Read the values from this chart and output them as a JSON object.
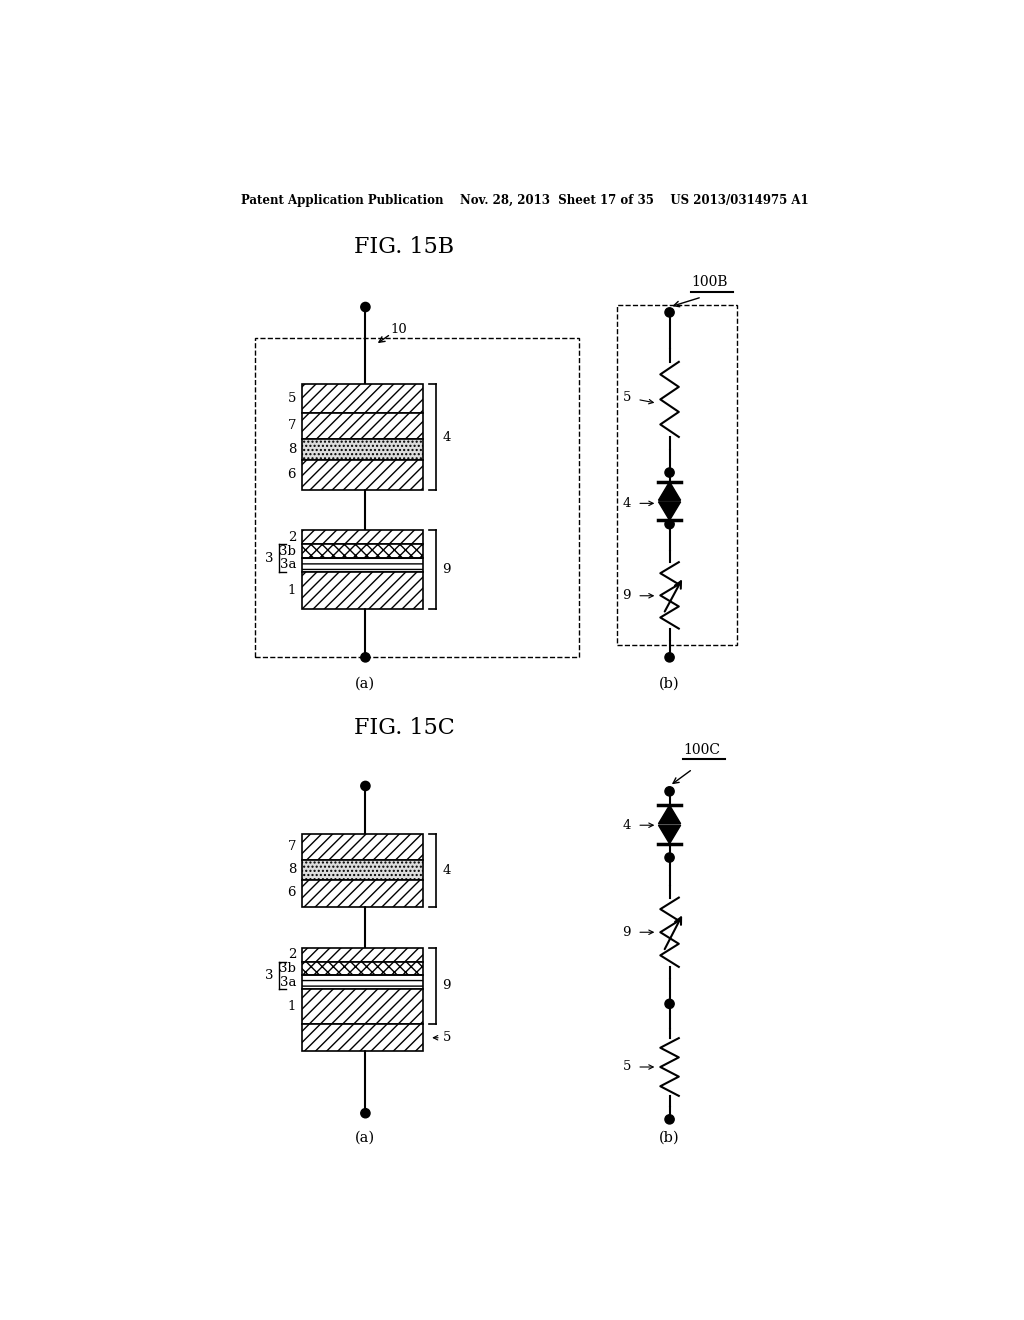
{
  "title_15b": "FIG. 15B",
  "title_15c": "FIG. 15C",
  "header_text": "Patent Application Publication    Nov. 28, 2013  Sheet 17 of 35    US 2013/0314975 A1",
  "label_100B": "100B",
  "label_100C": "100C",
  "bg_color": "#ffffff",
  "line_color": "#000000"
}
